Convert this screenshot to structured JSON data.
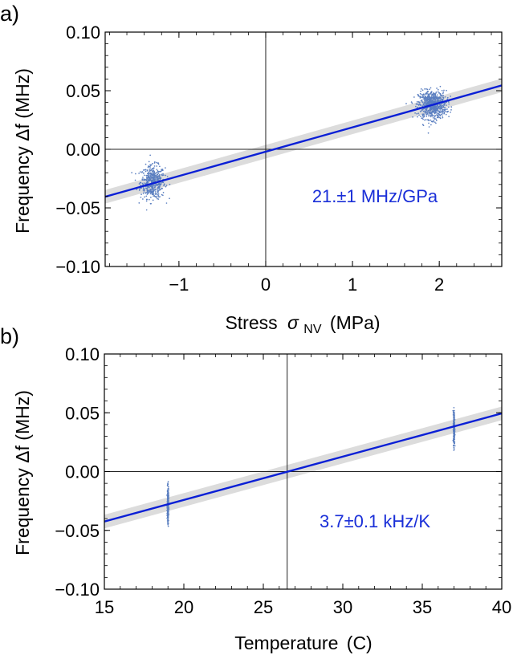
{
  "chart_data": [
    {
      "type": "scatter",
      "panel_label": "a)",
      "xlabel": "Stress",
      "xlabel_symbol": "σ",
      "xlabel_subscript": "NV",
      "xlabel_unit": "(MPa)",
      "ylabel": "Frequency Δf (MHz)",
      "xlim": [
        -1.85,
        2.72
      ],
      "ylim": [
        -0.1,
        0.1
      ],
      "x_ticks": [
        -1,
        0,
        1,
        2
      ],
      "x_tick_labels": [
        "−1",
        "0",
        "1",
        "2"
      ],
      "y_ticks": [
        0.1,
        0.05,
        0.0,
        -0.05,
        -0.1
      ],
      "y_tick_labels": [
        "0.10",
        "0.05",
        "0.00",
        "−0.05",
        "−0.10"
      ],
      "annotation": "21.±1 MHz/GPa",
      "fit_line": {
        "x": [
          -1.85,
          2.72
        ],
        "y": [
          -0.0405,
          0.0545
        ]
      },
      "clusters": [
        {
          "x_center": -1.3,
          "y_center": -0.028,
          "x_spread": 0.07,
          "y_spread": 0.007,
          "count": 500
        },
        {
          "x_center": 1.92,
          "y_center": 0.038,
          "x_spread": 0.08,
          "y_spread": 0.006,
          "count": 750
        }
      ],
      "colors": {
        "fit": "#0a1fd6",
        "points": "#5b7fc0",
        "band": "#dcdcdc",
        "annotation": "#1a2fd8"
      },
      "zero_lines": true
    },
    {
      "type": "scatter",
      "panel_label": "b)",
      "xlabel": "Temperature",
      "xlabel_unit": "(C)",
      "ylabel": "Frequency Δf (MHz)",
      "xlim": [
        15,
        40
      ],
      "ylim": [
        -0.1,
        0.1
      ],
      "x_ticks": [
        15,
        20,
        25,
        30,
        35,
        40
      ],
      "x_tick_labels": [
        "15",
        "20",
        "25",
        "30",
        "35",
        "40"
      ],
      "y_ticks": [
        0.1,
        0.05,
        0.0,
        -0.05,
        -0.1
      ],
      "y_tick_labels": [
        "0.10",
        "0.05",
        "0.00",
        "−0.05",
        "−0.10"
      ],
      "annotation": "3.7±0.1 kHz/K",
      "fit_line": {
        "x": [
          15,
          40
        ],
        "y": [
          -0.0425,
          0.0495
        ]
      },
      "vertical_line_x": 26.5,
      "clusters": [
        {
          "x_center": 19,
          "y_center": -0.029,
          "x_spread": 0.02,
          "y_spread": 0.007,
          "count": 320
        },
        {
          "x_center": 37,
          "y_center": 0.037,
          "x_spread": 0.02,
          "y_spread": 0.007,
          "count": 320
        }
      ],
      "colors": {
        "fit": "#0a1fd6",
        "points": "#5b7fc0",
        "band": "#dcdcdc",
        "annotation": "#1a2fd8"
      },
      "zero_lines": true
    }
  ]
}
